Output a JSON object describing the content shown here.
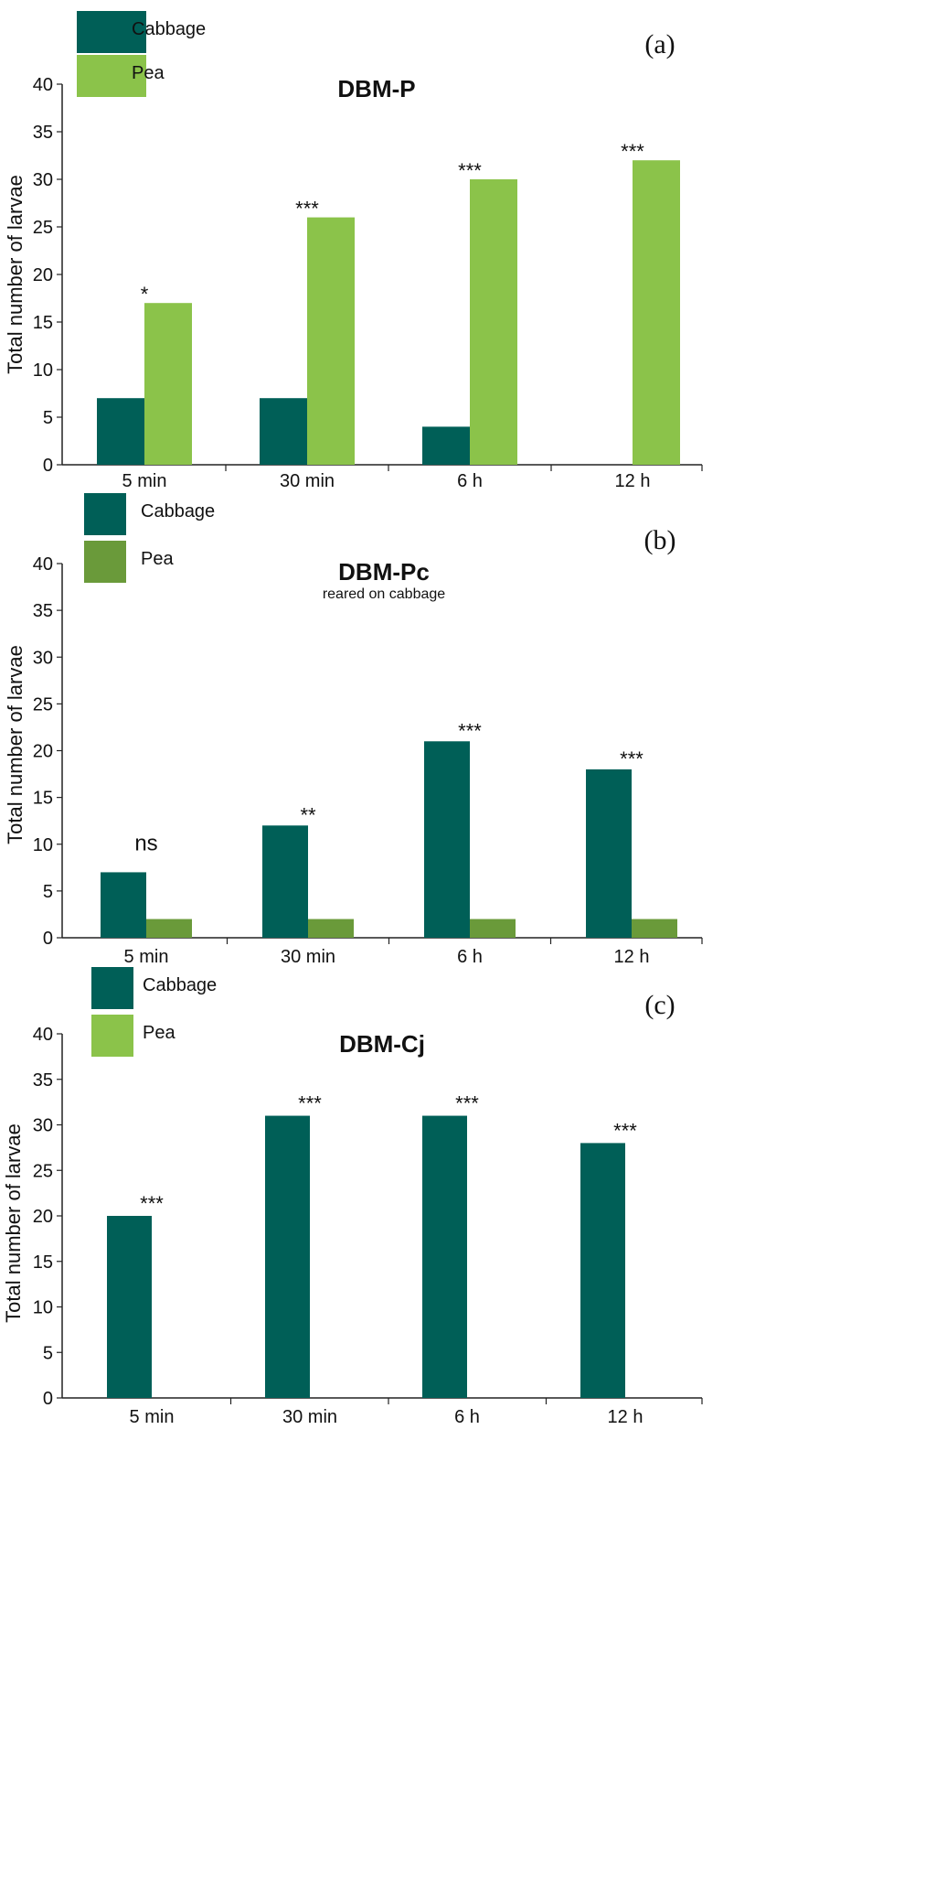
{
  "chart_data": [
    {
      "type": "bar",
      "panel_label": "(a)",
      "title": "DBM-P",
      "subtitle": "",
      "ylabel": "Total number of larvae",
      "xlabel": "",
      "ylim": [
        0,
        40
      ],
      "yticks": [
        0,
        5,
        10,
        15,
        20,
        25,
        30,
        35,
        40
      ],
      "categories": [
        "5 min",
        "30 min",
        "6 h",
        "12 h"
      ],
      "series": [
        {
          "name": "Cabbage",
          "color": "#005f57",
          "values": [
            7,
            7,
            4,
            0
          ]
        },
        {
          "name": "Pea",
          "color": "#8bc34a",
          "values": [
            17,
            26,
            30,
            32
          ]
        }
      ],
      "significance": [
        "*",
        "***",
        "***",
        "***"
      ],
      "legend_position": "top-left"
    },
    {
      "type": "bar",
      "panel_label": "(b)",
      "title": "DBM-Pc",
      "subtitle": "reared on cabbage",
      "ylabel": "Total number of larvae",
      "xlabel": "",
      "ylim": [
        0,
        40
      ],
      "yticks": [
        0,
        5,
        10,
        15,
        20,
        25,
        30,
        35,
        40
      ],
      "categories": [
        "5 min",
        "30 min",
        "6 h",
        "12 h"
      ],
      "series": [
        {
          "name": "Cabbage",
          "color": "#005f57",
          "values": [
            7,
            12,
            21,
            18
          ]
        },
        {
          "name": "Pea",
          "color": "#6a9a3a",
          "values": [
            2,
            2,
            2,
            2
          ]
        }
      ],
      "significance": [
        "ns",
        "**",
        "***",
        "***"
      ],
      "legend_position": "top-left"
    },
    {
      "type": "bar",
      "panel_label": "(c)",
      "title": "DBM-Cj",
      "subtitle": "",
      "ylabel": "Total number of larvae",
      "xlabel": "",
      "ylim": [
        0,
        40
      ],
      "yticks": [
        0,
        5,
        10,
        15,
        20,
        25,
        30,
        35,
        40
      ],
      "categories": [
        "5 min",
        "30 min",
        "6 h",
        "12 h"
      ],
      "series": [
        {
          "name": "Cabbage",
          "color": "#005f57",
          "values": [
            20,
            31,
            31,
            28
          ]
        },
        {
          "name": "Pea",
          "color": "#8bc34a",
          "values": [
            0,
            0,
            0,
            0
          ]
        }
      ],
      "significance": [
        "***",
        "***",
        "***",
        "***"
      ],
      "legend_position": "top-left"
    }
  ]
}
